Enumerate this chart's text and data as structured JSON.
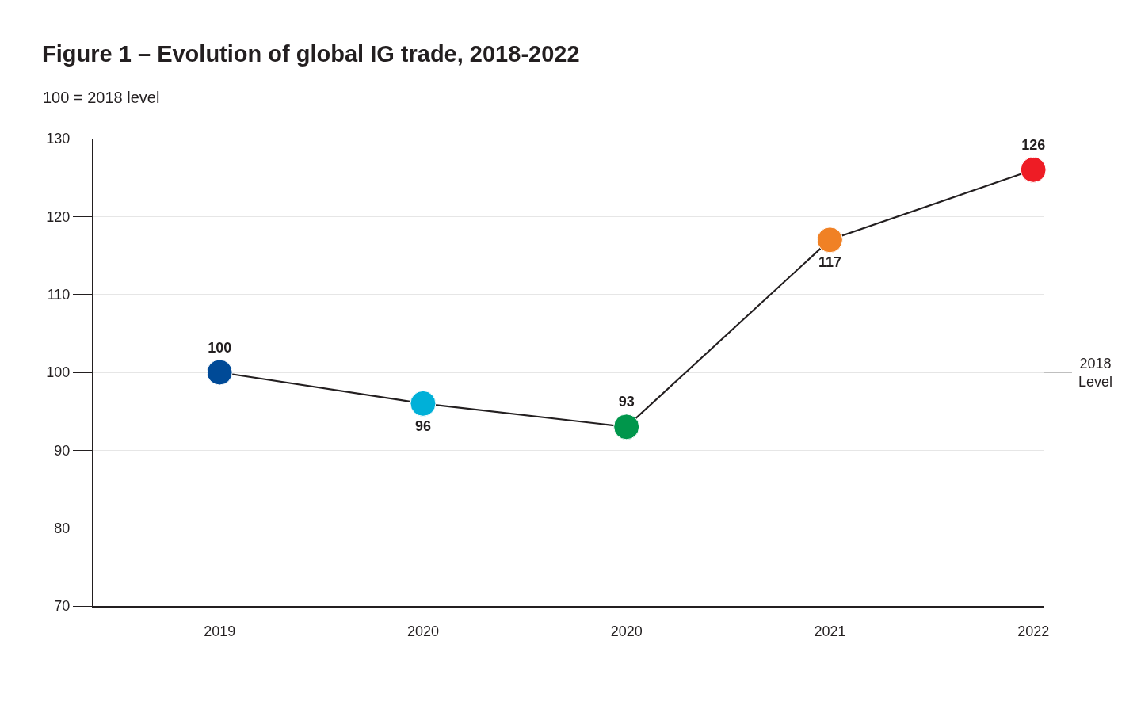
{
  "chart_data": {
    "type": "line",
    "title": "Figure 1 – Evolution of global IG trade, 2018-2022",
    "subtitle": "100 = 2018 level",
    "categories": [
      "2019",
      "2020",
      "2020",
      "2021",
      "2022"
    ],
    "series": [
      {
        "color": "#231f20",
        "values": [
          100,
          96,
          93,
          117,
          126
        ],
        "colors": [
          "#004a97",
          "#00b0d8",
          "#00964b",
          "#f08125",
          "#ee1c25"
        ]
      }
    ],
    "ylim": [
      70,
      130
    ],
    "yticks": [
      70,
      80,
      90,
      100,
      110,
      120,
      130
    ],
    "grid": "y",
    "marker": "circle",
    "line_style": "solid",
    "data_labels": true,
    "ref_lines": [
      {
        "axis": "y",
        "value": 100,
        "label": "2018 Level",
        "color": "#bfbfbf"
      }
    ]
  }
}
